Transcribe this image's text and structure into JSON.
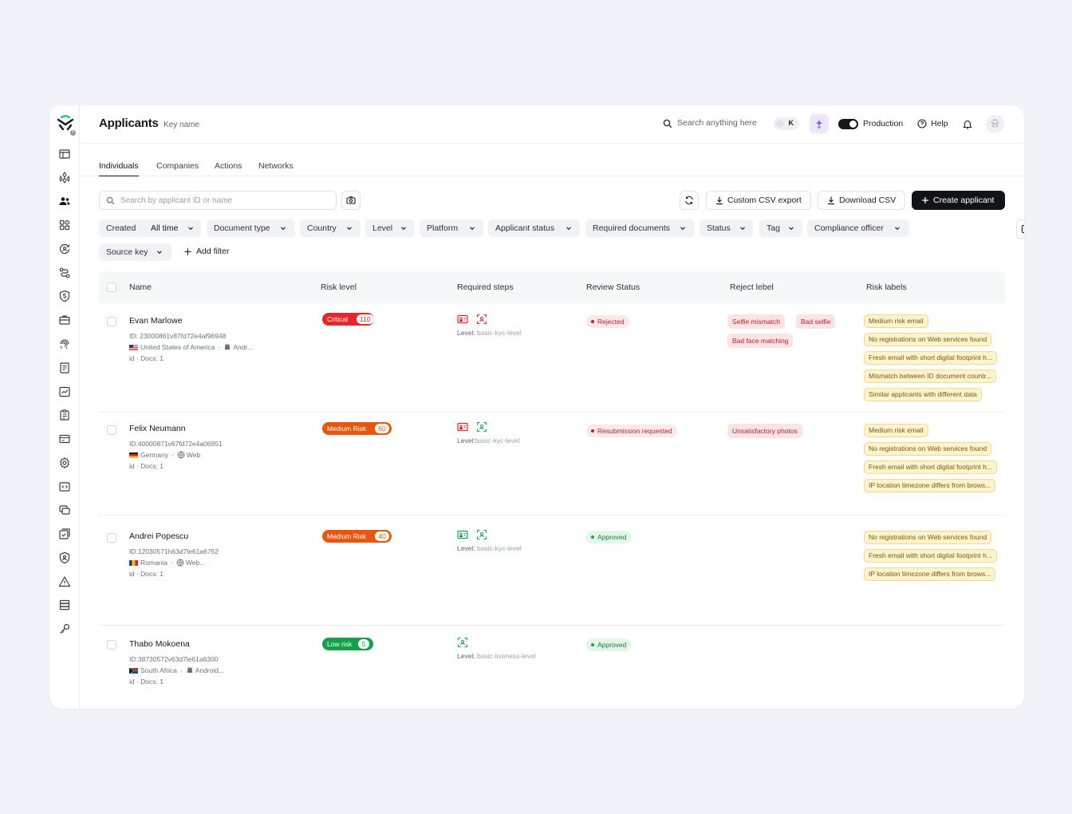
{
  "header": {
    "title": "Applicants",
    "subtitle": "Key name"
  },
  "topbar": {
    "search_placeholder": "Search anything here",
    "search_shortcut": "K",
    "environment_label": "Production",
    "help_label": "Help"
  },
  "tabs": [
    {
      "label": "Individuals",
      "active": true
    },
    {
      "label": "Companies",
      "active": false
    },
    {
      "label": "Actions",
      "active": false
    },
    {
      "label": "Networks",
      "active": false
    }
  ],
  "toolbar": {
    "search_placeholder": "Search by applicant ID or name",
    "custom_export_label": "Custom CSV export",
    "download_label": "Download CSV",
    "create_label": "Create applicant"
  },
  "filters": [
    {
      "label": "Created",
      "value": "All time"
    },
    {
      "label": "Document type"
    },
    {
      "label": "Country"
    },
    {
      "label": "Level"
    },
    {
      "label": "Platform"
    },
    {
      "label": "Applicant status"
    },
    {
      "label": "Required documents"
    },
    {
      "label": "Status"
    },
    {
      "label": "Tag"
    },
    {
      "label": "Compliance officer"
    },
    {
      "label": "Source key"
    }
  ],
  "add_filter_label": "Add filter",
  "table": {
    "columns": [
      "Name",
      "Risk level",
      "Required steps",
      "Review Status",
      "Reject lebel",
      "Risk labels"
    ],
    "rows": [
      {
        "name": "Evan Marlowe",
        "id": "ID: 23000861v87fd72e4af96948",
        "country": "United States of America",
        "platform": "Andr...",
        "docs": "id · Docs: 1",
        "risk_label": "Critical",
        "risk_score": "110",
        "risk_color": "#e5262b",
        "level_prefix": "Level: ",
        "level": "basic-kyc-level",
        "review_status": "Rejected",
        "reject_labels": [
          "Selfie mismatch",
          "Bad selfie",
          "Bad face matching"
        ],
        "risk_labels": [
          "Medium risk email",
          "No registrations on Web services found",
          "Fresh email with short digital footprint h...",
          "Mismatch between ID document countr...",
          "Similar applicants with different data"
        ]
      },
      {
        "name": "Felix Neumann",
        "id": "ID:40000871v67fd72e4a06951",
        "country": "Germany",
        "platform": "Web",
        "docs": "id · Docs: 1",
        "risk_label": "Medium Risk",
        "risk_score": "60",
        "risk_color": "#e8570e",
        "level_prefix": "Level:",
        "level": "basic-kyc-level",
        "review_status": "Resubmission requested",
        "reject_labels": [
          "Unsatisfactory photos"
        ],
        "risk_labels": [
          "Medium risk email",
          "No registrations on Web services found",
          "Fresh email with short digital footprint h...",
          "IP location timezone differs from brows..."
        ]
      },
      {
        "name": "Andrei Popescu",
        "id": "ID:12030571h63d7le61a6752",
        "country": "Romania",
        "platform": "Web...",
        "docs": "id · Docs: 1",
        "risk_label": "Medium Risk",
        "risk_score": "40",
        "risk_color": "#e8570e",
        "level_prefix": "Level: ",
        "level": "basic-kyc-level",
        "review_status": "Approved",
        "reject_labels": [],
        "risk_labels": [
          "No registrations on Web services found",
          "Fresh email with short digital footprint h...",
          "IP location timezone differs from brows..."
        ]
      },
      {
        "name": "Thabo Mokoena",
        "id": "ID:38730572v63d7le61a6300",
        "country": "South Africa",
        "platform": "Android...",
        "docs": "id · Docs: 1",
        "risk_label": "Low risk",
        "risk_score": "5",
        "risk_color": "#14a04a",
        "level_prefix": "Level: ",
        "level": "basic-liveness-level",
        "review_status": "Approved",
        "reject_labels": [],
        "risk_labels": []
      }
    ]
  },
  "colors": {
    "accent_dark": "#111317",
    "rejected": "#b4232a",
    "approved": "#187a3c",
    "warning": "#7a5a06"
  }
}
